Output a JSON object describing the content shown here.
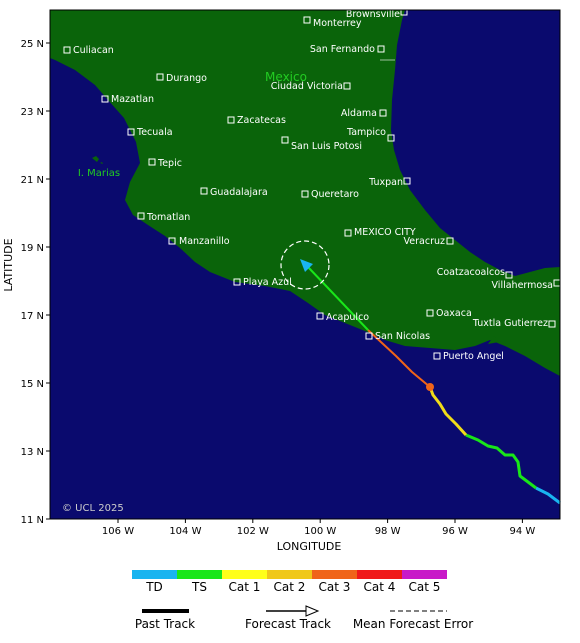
{
  "map": {
    "x_label": "LONGITUDE",
    "y_label": "LATITUDE",
    "lon_ticks": [
      "106 W",
      "104 W",
      "102 W",
      "100 W",
      "98 W",
      "96 W",
      "94 W"
    ],
    "lat_ticks": [
      "25 N",
      "23 N",
      "21 N",
      "19 N",
      "17 N",
      "15 N",
      "13 N",
      "11 N"
    ],
    "country": "Mexico",
    "island": "I. Marias",
    "credit": "© UCL 2025",
    "cities": [
      "Brownsville",
      "Monterrey",
      "Culiacan",
      "San Fernando",
      "Durango",
      "Ciudad Victoria",
      "Mazatlan",
      "Aldama",
      "Zacatecas",
      "Tampico",
      "Tecuala",
      "San Luis Potosi",
      "Tepic",
      "Tuxpan",
      "Guadalajara",
      "Queretaro",
      "Tomatlan",
      "MEXICO CITY",
      "Veracruz",
      "Manzanillo",
      "Coatzacoalcos",
      "Villahermosa",
      "Playa Azul",
      "Acapulco",
      "Oaxaca",
      "Tuxtla Gutierrez",
      "San Nicolas",
      "Puerto Angel"
    ]
  },
  "legend": {
    "categories": [
      "TD",
      "TS",
      "Cat 1",
      "Cat 2",
      "Cat 3",
      "Cat 4",
      "Cat 5"
    ],
    "items": [
      "Past Track",
      "Forecast Track",
      "Mean Forecast Error"
    ]
  }
}
